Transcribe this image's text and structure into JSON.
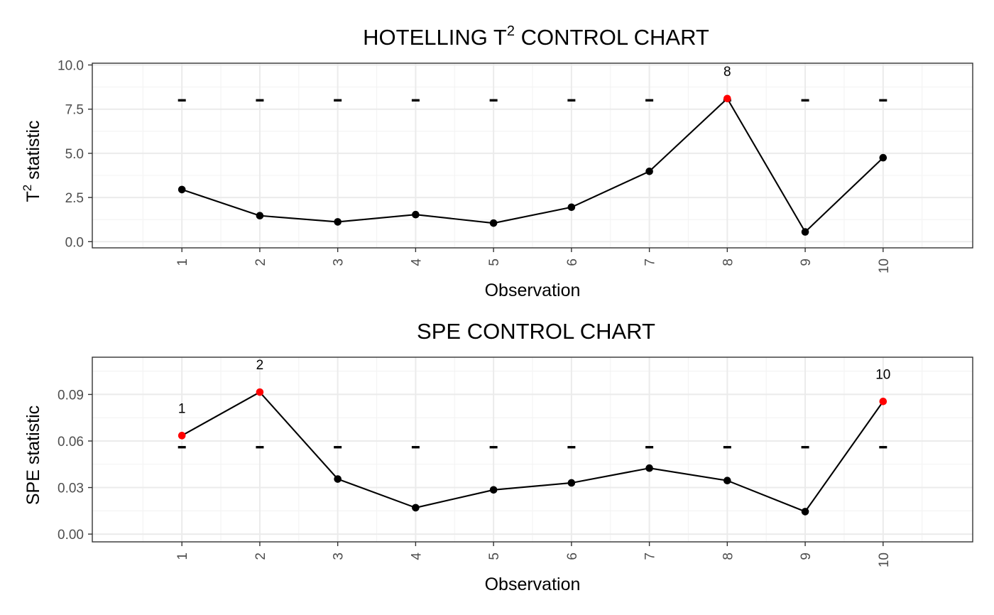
{
  "colors": {
    "in_control": "#000000",
    "out_of_control": "#ff0000",
    "panel_border": "#333333",
    "grid_major": "#ebebeb",
    "grid_minor": "#f3f3f3",
    "tick_text": "#4d4d4d"
  },
  "chart_data": [
    {
      "type": "line",
      "title": "HOTELLING T",
      "title_sup": "2",
      "title_suffix": " CONTROL CHART",
      "xlabel": "Observation",
      "ylabel": "T",
      "ylabel_sup": "2",
      "ylabel_suffix": " statistic",
      "x": [
        1,
        2,
        3,
        4,
        5,
        6,
        7,
        8,
        9,
        10
      ],
      "x_tick_labels": [
        "1",
        "2",
        "3",
        "4",
        "5",
        "6",
        "7",
        "8",
        "9",
        "10"
      ],
      "values": [
        2.95,
        1.47,
        1.12,
        1.53,
        1.05,
        1.95,
        3.98,
        8.1,
        0.55,
        4.75
      ],
      "control_limit": [
        8.0,
        8.0,
        8.0,
        8.0,
        8.0,
        8.0,
        8.0,
        8.0,
        8.0,
        8.0
      ],
      "out_of_control": [
        8
      ],
      "point_labels": [
        {
          "x": 8,
          "text": "8"
        }
      ],
      "y_ticks": [
        0.0,
        2.5,
        5.0,
        7.5,
        10.0
      ],
      "y_tick_labels": [
        "0.0",
        "2.5",
        "5.0",
        "7.5",
        "10.0"
      ],
      "xlim": [
        -0.15,
        11.15
      ],
      "ylim": [
        -0.35,
        10.1
      ],
      "grid": true,
      "legend": "none"
    },
    {
      "type": "line",
      "title": "SPE CONTROL CHART",
      "title_sup": "",
      "title_suffix": "",
      "xlabel": "Observation",
      "ylabel": "SPE statistic",
      "ylabel_sup": "",
      "ylabel_suffix": "",
      "x": [
        1,
        2,
        3,
        4,
        5,
        6,
        7,
        8,
        9,
        10
      ],
      "x_tick_labels": [
        "1",
        "2",
        "3",
        "4",
        "5",
        "6",
        "7",
        "8",
        "9",
        "10"
      ],
      "values": [
        0.0635,
        0.0915,
        0.0355,
        0.017,
        0.0285,
        0.033,
        0.0425,
        0.0345,
        0.0145,
        0.0855
      ],
      "control_limit": [
        0.056,
        0.056,
        0.056,
        0.056,
        0.056,
        0.056,
        0.056,
        0.056,
        0.056,
        0.056
      ],
      "out_of_control": [
        1,
        2,
        10
      ],
      "point_labels": [
        {
          "x": 1,
          "text": "1"
        },
        {
          "x": 2,
          "text": "2"
        },
        {
          "x": 10,
          "text": "10"
        }
      ],
      "y_ticks": [
        0.0,
        0.03,
        0.06,
        0.09
      ],
      "y_tick_labels": [
        "0.00",
        "0.03",
        "0.06",
        "0.09"
      ],
      "xlim": [
        -0.15,
        11.15
      ],
      "ylim": [
        -0.005,
        0.114
      ],
      "grid": true,
      "legend": "none"
    }
  ]
}
